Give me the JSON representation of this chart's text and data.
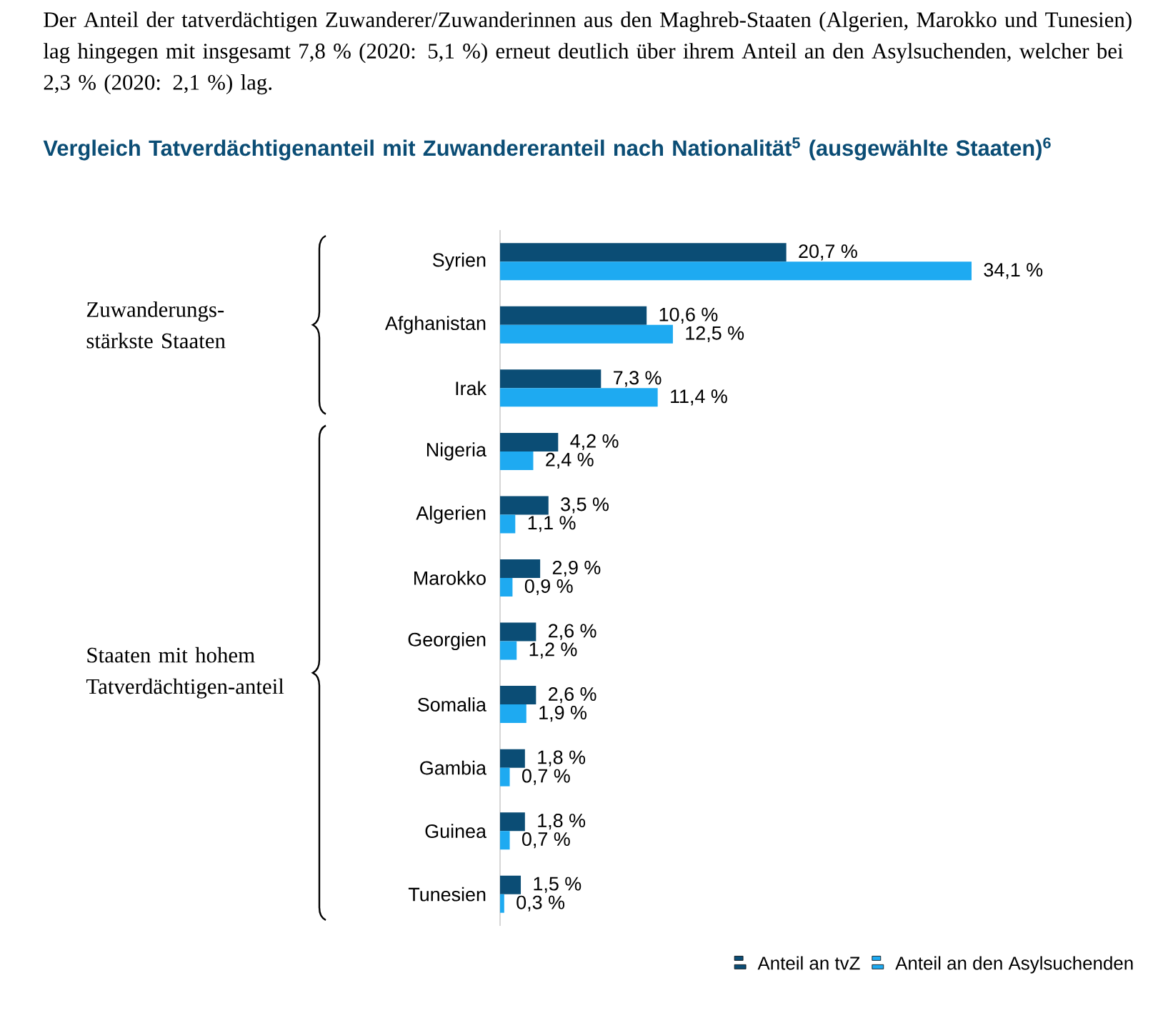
{
  "chart_data": {
    "type": "bar",
    "orientation": "horizontal",
    "title": "Vergleich Tatverdächtigenanteil mit Zuwandereranteil nach Nationalität$^{5}$ (ausgewählte Staaten)$^{6}$",
    "annotations": [
      "Der Anteil der tatverdächtigen Zuwanderer/Zuwanderinnen aus den Maghreb-Staaten (Algerien, Marokko und Tunesien) lag hingegen mit insgesamt 7,8 % (2020: 5,1 %) erneut deutlich über ihrem Anteil an den Asylsuchenden, welcher bei 2,3 % (2020: 2,1 %) lag.",
      "Zuwanderungs-stärkste Staaten",
      "Staaten mit hohem Tatverdächtigen-anteil"
    ],
    "categories": [
      "Syrien",
      "Afghanistan",
      "Irak",
      "Nigeria",
      "Algerien",
      "Marokko",
      "Georgien",
      "Somalia",
      "Gambia",
      "Guinea",
      "Tunesien"
    ],
    "series": [
      {
        "name": "Anteil an tvZ",
        "color": "#0b4d75",
        "values": [
          20.7,
          10.6,
          7.3,
          4.2,
          3.5,
          2.9,
          2.6,
          2.6,
          1.8,
          1.8,
          1.5
        ],
        "value_labels": [
          "20,7 %",
          "10,6 %",
          "7,3 %",
          "4,2 %",
          "3,5 %",
          "2,9 %",
          "2,6 %",
          "2,6 %",
          "1,8 %",
          "1,8 %",
          "1,5 %"
        ]
      },
      {
        "name": "Anteil an den Asylsuchenden",
        "color": "#1eaaf1",
        "values": [
          34.1,
          12.5,
          11.4,
          2.4,
          1.1,
          0.9,
          1.2,
          1.9,
          0.7,
          0.7,
          0.3
        ],
        "value_labels": [
          "34,1 %",
          "12,5 %",
          "11,4 %",
          "2,4 %",
          "1,1 %",
          "0,9 %",
          "1,2 %",
          "1,9 %",
          "0,7 %",
          "0,7 %",
          "0,3 %"
        ]
      }
    ],
    "legend": "bottom right"
  }
}
